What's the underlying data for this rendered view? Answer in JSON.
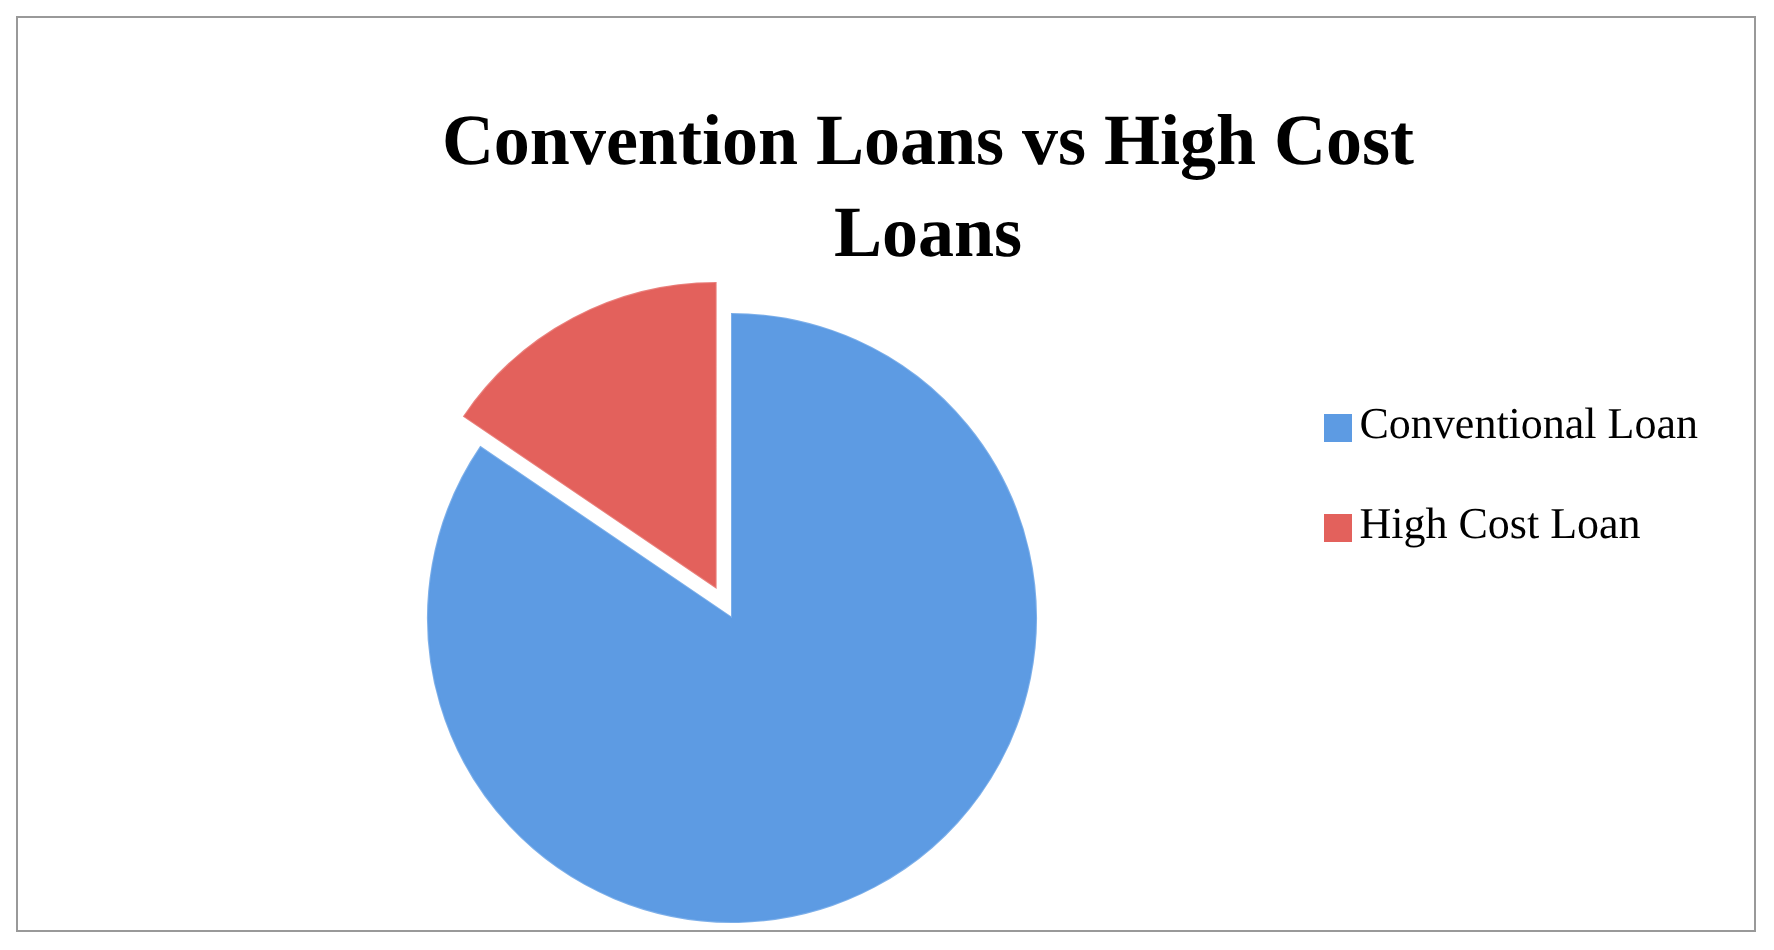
{
  "chart_data": {
    "type": "pie",
    "title": "Convention Loans vs High Cost Loans",
    "categories": [
      "Conventional Loan",
      "High Cost Loan"
    ],
    "values": [
      84.5,
      15.5
    ],
    "colors": [
      "#5d9be3",
      "#e3615c"
    ],
    "legend": "right"
  }
}
